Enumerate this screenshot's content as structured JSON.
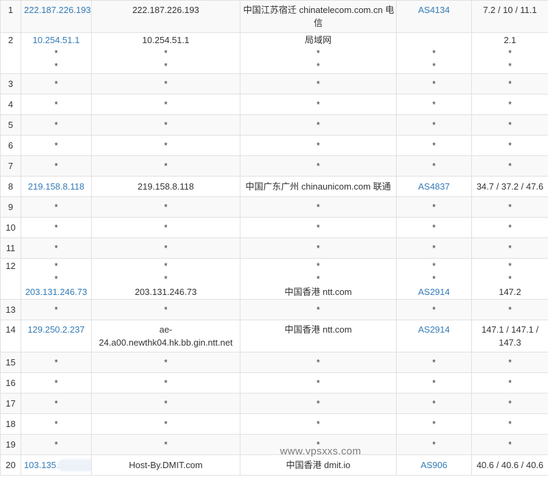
{
  "watermark": {
    "text": "www.vpsxxs.com"
  },
  "colors": {
    "link_blue": "#337ab7",
    "border": "#e0e0e0",
    "row_alt_bg": "#f9f9f9",
    "text": "#333333",
    "watermark_gray": "#7d7d7d"
  },
  "table": {
    "rows": [
      {
        "num": "1",
        "cells": [
          {
            "lines": [
              {
                "t": "222.187.226.193",
                "link": true
              }
            ]
          },
          {
            "lines": [
              {
                "t": "222.187.226.193"
              }
            ]
          },
          {
            "lines": [
              {
                "t": "中国江苏宿迁 chinatelecom.com.cn 电"
              },
              {
                "t": "信"
              }
            ]
          },
          {
            "lines": [
              {
                "t": "AS4134",
                "link": true
              }
            ]
          },
          {
            "lines": [
              {
                "t": "7.2 / 10 / 11.1"
              }
            ]
          }
        ]
      },
      {
        "num": "2",
        "cells": [
          {
            "lines": [
              {
                "t": "10.254.51.1",
                "link": true
              },
              {
                "t": "*"
              },
              {
                "t": "*"
              }
            ]
          },
          {
            "lines": [
              {
                "t": "10.254.51.1"
              },
              {
                "t": "*"
              },
              {
                "t": "*"
              }
            ]
          },
          {
            "lines": [
              {
                "t": "局域网"
              },
              {
                "t": "*"
              },
              {
                "t": "*"
              }
            ]
          },
          {
            "lines": [
              {
                "t": ""
              },
              {
                "t": "*"
              },
              {
                "t": "*"
              }
            ]
          },
          {
            "lines": [
              {
                "t": "2.1"
              },
              {
                "t": "*"
              },
              {
                "t": "*"
              }
            ]
          }
        ]
      },
      {
        "num": "3",
        "cells": [
          {
            "lines": [
              {
                "t": "*"
              }
            ]
          },
          {
            "lines": [
              {
                "t": "*"
              }
            ]
          },
          {
            "lines": [
              {
                "t": "*"
              }
            ]
          },
          {
            "lines": [
              {
                "t": "*"
              }
            ]
          },
          {
            "lines": [
              {
                "t": "*"
              }
            ]
          }
        ]
      },
      {
        "num": "4",
        "cells": [
          {
            "lines": [
              {
                "t": "*"
              }
            ]
          },
          {
            "lines": [
              {
                "t": "*"
              }
            ]
          },
          {
            "lines": [
              {
                "t": "*"
              }
            ]
          },
          {
            "lines": [
              {
                "t": "*"
              }
            ]
          },
          {
            "lines": [
              {
                "t": "*"
              }
            ]
          }
        ]
      },
      {
        "num": "5",
        "cells": [
          {
            "lines": [
              {
                "t": "*"
              }
            ]
          },
          {
            "lines": [
              {
                "t": "*"
              }
            ]
          },
          {
            "lines": [
              {
                "t": "*"
              }
            ]
          },
          {
            "lines": [
              {
                "t": "*"
              }
            ]
          },
          {
            "lines": [
              {
                "t": "*"
              }
            ]
          }
        ]
      },
      {
        "num": "6",
        "cells": [
          {
            "lines": [
              {
                "t": "*"
              }
            ]
          },
          {
            "lines": [
              {
                "t": "*"
              }
            ]
          },
          {
            "lines": [
              {
                "t": "*"
              }
            ]
          },
          {
            "lines": [
              {
                "t": "*"
              }
            ]
          },
          {
            "lines": [
              {
                "t": "*"
              }
            ]
          }
        ]
      },
      {
        "num": "7",
        "cells": [
          {
            "lines": [
              {
                "t": "*"
              }
            ]
          },
          {
            "lines": [
              {
                "t": "*"
              }
            ]
          },
          {
            "lines": [
              {
                "t": "*"
              }
            ]
          },
          {
            "lines": [
              {
                "t": "*"
              }
            ]
          },
          {
            "lines": [
              {
                "t": "*"
              }
            ]
          }
        ]
      },
      {
        "num": "8",
        "cells": [
          {
            "lines": [
              {
                "t": "219.158.8.118",
                "link": true
              }
            ]
          },
          {
            "lines": [
              {
                "t": "219.158.8.118"
              }
            ]
          },
          {
            "lines": [
              {
                "t": "中国广东广州 chinaunicom.com 联通"
              }
            ]
          },
          {
            "lines": [
              {
                "t": "AS4837",
                "link": true
              }
            ]
          },
          {
            "lines": [
              {
                "t": "34.7 / 37.2 / 47.6"
              }
            ]
          }
        ]
      },
      {
        "num": "9",
        "cells": [
          {
            "lines": [
              {
                "t": "*"
              }
            ]
          },
          {
            "lines": [
              {
                "t": "*"
              }
            ]
          },
          {
            "lines": [
              {
                "t": "*"
              }
            ]
          },
          {
            "lines": [
              {
                "t": "*"
              }
            ]
          },
          {
            "lines": [
              {
                "t": "*"
              }
            ]
          }
        ]
      },
      {
        "num": "10",
        "cells": [
          {
            "lines": [
              {
                "t": "*"
              }
            ]
          },
          {
            "lines": [
              {
                "t": "*"
              }
            ]
          },
          {
            "lines": [
              {
                "t": "*"
              }
            ]
          },
          {
            "lines": [
              {
                "t": "*"
              }
            ]
          },
          {
            "lines": [
              {
                "t": "*"
              }
            ]
          }
        ]
      },
      {
        "num": "11",
        "cells": [
          {
            "lines": [
              {
                "t": "*"
              }
            ]
          },
          {
            "lines": [
              {
                "t": "*"
              }
            ]
          },
          {
            "lines": [
              {
                "t": "*"
              }
            ]
          },
          {
            "lines": [
              {
                "t": "*"
              }
            ]
          },
          {
            "lines": [
              {
                "t": "*"
              }
            ]
          }
        ]
      },
      {
        "num": "12",
        "cells": [
          {
            "lines": [
              {
                "t": "*"
              },
              {
                "t": "*"
              },
              {
                "t": "203.131.246.73",
                "link": true
              }
            ]
          },
          {
            "lines": [
              {
                "t": "*"
              },
              {
                "t": "*"
              },
              {
                "t": "203.131.246.73"
              }
            ]
          },
          {
            "lines": [
              {
                "t": "*"
              },
              {
                "t": "*"
              },
              {
                "t": "中国香港 ntt.com"
              }
            ]
          },
          {
            "lines": [
              {
                "t": "*"
              },
              {
                "t": "*"
              },
              {
                "t": "AS2914",
                "link": true
              }
            ]
          },
          {
            "lines": [
              {
                "t": "*"
              },
              {
                "t": "*"
              },
              {
                "t": "147.2"
              }
            ]
          }
        ]
      },
      {
        "num": "13",
        "cells": [
          {
            "lines": [
              {
                "t": "*"
              }
            ]
          },
          {
            "lines": [
              {
                "t": "*"
              }
            ]
          },
          {
            "lines": [
              {
                "t": "*"
              }
            ]
          },
          {
            "lines": [
              {
                "t": "*"
              }
            ]
          },
          {
            "lines": [
              {
                "t": "*"
              }
            ]
          }
        ]
      },
      {
        "num": "14",
        "cells": [
          {
            "lines": [
              {
                "t": "129.250.2.237",
                "link": true
              }
            ]
          },
          {
            "lines": [
              {
                "t": "ae-"
              },
              {
                "t": "24.a00.newthk04.hk.bb.gin.ntt.net"
              }
            ]
          },
          {
            "lines": [
              {
                "t": "中国香港 ntt.com"
              }
            ]
          },
          {
            "lines": [
              {
                "t": "AS2914",
                "link": true
              }
            ]
          },
          {
            "lines": [
              {
                "t": "147.1 / 147.1 /"
              },
              {
                "t": "147.3"
              }
            ]
          }
        ]
      },
      {
        "num": "15",
        "cells": [
          {
            "lines": [
              {
                "t": "*"
              }
            ]
          },
          {
            "lines": [
              {
                "t": "*"
              }
            ]
          },
          {
            "lines": [
              {
                "t": "*"
              }
            ]
          },
          {
            "lines": [
              {
                "t": "*"
              }
            ]
          },
          {
            "lines": [
              {
                "t": "*"
              }
            ]
          }
        ]
      },
      {
        "num": "16",
        "cells": [
          {
            "lines": [
              {
                "t": "*"
              }
            ]
          },
          {
            "lines": [
              {
                "t": "*"
              }
            ]
          },
          {
            "lines": [
              {
                "t": "*"
              }
            ]
          },
          {
            "lines": [
              {
                "t": "*"
              }
            ]
          },
          {
            "lines": [
              {
                "t": "*"
              }
            ]
          }
        ]
      },
      {
        "num": "17",
        "cells": [
          {
            "lines": [
              {
                "t": "*"
              }
            ]
          },
          {
            "lines": [
              {
                "t": "*"
              }
            ]
          },
          {
            "lines": [
              {
                "t": "*"
              }
            ]
          },
          {
            "lines": [
              {
                "t": "*"
              }
            ]
          },
          {
            "lines": [
              {
                "t": "*"
              }
            ]
          }
        ]
      },
      {
        "num": "18",
        "cells": [
          {
            "lines": [
              {
                "t": "*"
              }
            ]
          },
          {
            "lines": [
              {
                "t": "*"
              }
            ]
          },
          {
            "lines": [
              {
                "t": "*"
              }
            ]
          },
          {
            "lines": [
              {
                "t": "*"
              }
            ]
          },
          {
            "lines": [
              {
                "t": "*"
              }
            ]
          }
        ]
      },
      {
        "num": "19",
        "cells": [
          {
            "lines": [
              {
                "t": "*"
              }
            ]
          },
          {
            "lines": [
              {
                "t": "*"
              }
            ]
          },
          {
            "lines": [
              {
                "t": "*"
              }
            ]
          },
          {
            "lines": [
              {
                "t": "*"
              }
            ]
          },
          {
            "lines": [
              {
                "t": "*"
              }
            ]
          }
        ]
      },
      {
        "num": "20",
        "cells": [
          {
            "lines": [
              {
                "t": "103.135.",
                "link": true,
                "censored": true
              }
            ]
          },
          {
            "lines": [
              {
                "t": "Host-By.DMIT.com"
              }
            ]
          },
          {
            "lines": [
              {
                "t": "中国香港 dmit.io"
              }
            ]
          },
          {
            "lines": [
              {
                "t": "AS906",
                "link": true
              }
            ]
          },
          {
            "lines": [
              {
                "t": "40.6 / 40.6 / 40.6"
              }
            ]
          }
        ]
      }
    ]
  }
}
